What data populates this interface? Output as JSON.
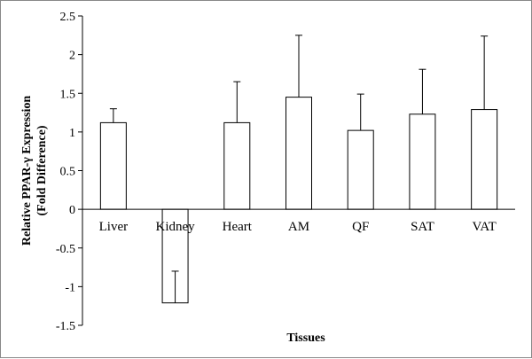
{
  "chart_data": {
    "type": "bar",
    "categories": [
      "Liver",
      "Kidney",
      "Heart",
      "AM",
      "QF",
      "SAT",
      "VAT"
    ],
    "values": [
      1.12,
      -1.21,
      1.12,
      1.45,
      1.02,
      1.23,
      1.29
    ],
    "error_bars": [
      0.18,
      0.41,
      0.53,
      0.8,
      0.47,
      0.58,
      0.95
    ],
    "title": "",
    "xlabel": "Tissues",
    "ylabel_line1": "Relative PPAR-γ Expression",
    "ylabel_line2": "(Fold Difference)",
    "ylim": [
      -1.5,
      2.5
    ],
    "yticks": [
      {
        "value": 2.5,
        "label": "2.5"
      },
      {
        "value": 2,
        "label": "2"
      },
      {
        "value": 1.5,
        "label": "1.5"
      },
      {
        "value": 1,
        "label": "1"
      },
      {
        "value": 0.5,
        "label": "0.5"
      },
      {
        "value": 0,
        "label": "0"
      },
      {
        "value": -0.5,
        "label": "-0.5"
      },
      {
        "value": -1,
        "label": "-1"
      },
      {
        "value": -1.5,
        "label": "-1.5"
      }
    ],
    "grid": false,
    "colors": {
      "bar_fill": "#ffffff",
      "bar_stroke": "#000000",
      "axis": "#000000"
    }
  }
}
